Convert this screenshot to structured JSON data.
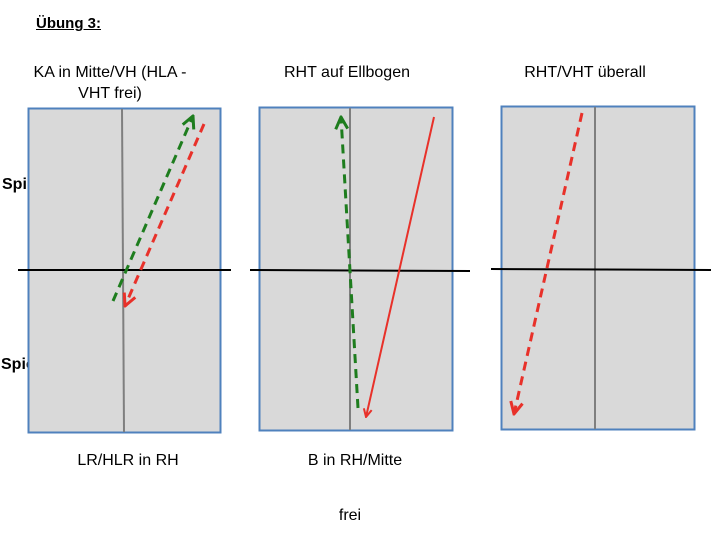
{
  "title": "Übung 3:",
  "players": {
    "a": "Spieler A",
    "b": "Spieler B"
  },
  "panels": [
    {
      "heading_line1": "KA in Mitte/VH (HLA -",
      "heading_line2": "VHT frei)",
      "caption": "LR/HLR in RH"
    },
    {
      "heading_line1": "RHT auf Ellbogen",
      "heading_line2": "",
      "caption": "B in RH/Mitte"
    },
    {
      "heading_line1": "RHT/VHT überall",
      "heading_line2": "",
      "caption": ""
    }
  ],
  "footer": "frei",
  "colors": {
    "table_fill": "#d9d9d9",
    "table_border": "#4f81bd",
    "center_line": "#7f7f7f",
    "net": "#000000",
    "green_arrow": "#1e7d1e",
    "red_arrow": "#e8312a"
  }
}
